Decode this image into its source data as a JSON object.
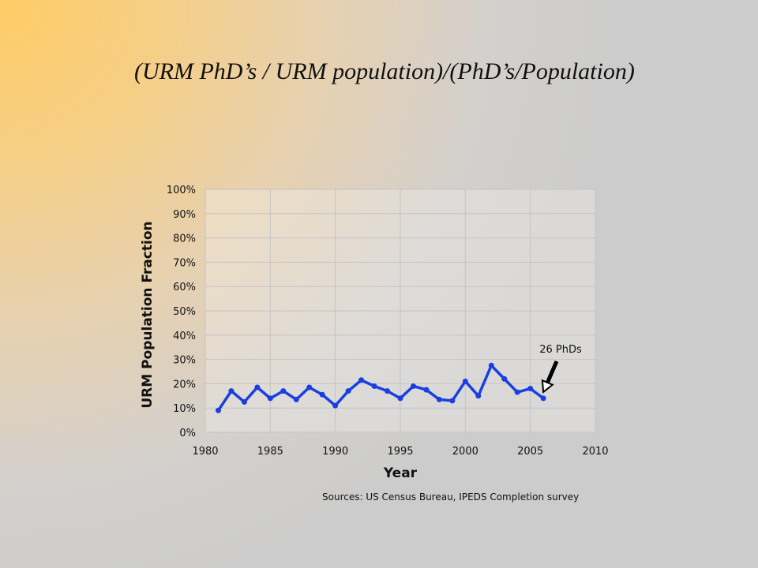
{
  "slide": {
    "title": "(URM PhD’s / URM population)/(PhD’s/Population)"
  },
  "chart_data": {
    "type": "line",
    "xlabel": "Year",
    "ylabel": "URM Population Fraction",
    "xlim": [
      1980,
      2010
    ],
    "ylim": [
      0,
      100
    ],
    "x_ticks": [
      1980,
      1985,
      1990,
      1995,
      2000,
      2005,
      2010
    ],
    "y_ticks": [
      0,
      10,
      20,
      30,
      40,
      50,
      60,
      70,
      80,
      90,
      100
    ],
    "y_tick_labels": [
      "0%",
      "10%",
      "20%",
      "30%",
      "40%",
      "50%",
      "60%",
      "70%",
      "80%",
      "90%",
      "100%"
    ],
    "grid": true,
    "series": [
      {
        "color": "#1a3fe0",
        "x": [
          1981,
          1982,
          1983,
          1984,
          1985,
          1986,
          1987,
          1988,
          1989,
          1990,
          1991,
          1992,
          1993,
          1994,
          1995,
          1996,
          1997,
          1998,
          1999,
          2000,
          2001,
          2002,
          2003,
          2004,
          2005,
          2006
        ],
        "y": [
          9,
          17,
          12.5,
          18.5,
          14,
          17,
          13.5,
          18.5,
          15.5,
          11,
          17,
          21.5,
          19,
          17,
          14,
          19,
          17.5,
          13.5,
          13,
          21,
          15,
          27.5,
          22,
          16.5,
          18,
          14
        ]
      }
    ],
    "annotation": {
      "text": "26 PhDs",
      "arrow_to": {
        "x": 2006,
        "y": 14
      }
    },
    "source_note": "Sources: US Census Bureau, IPEDS Completion survey"
  }
}
